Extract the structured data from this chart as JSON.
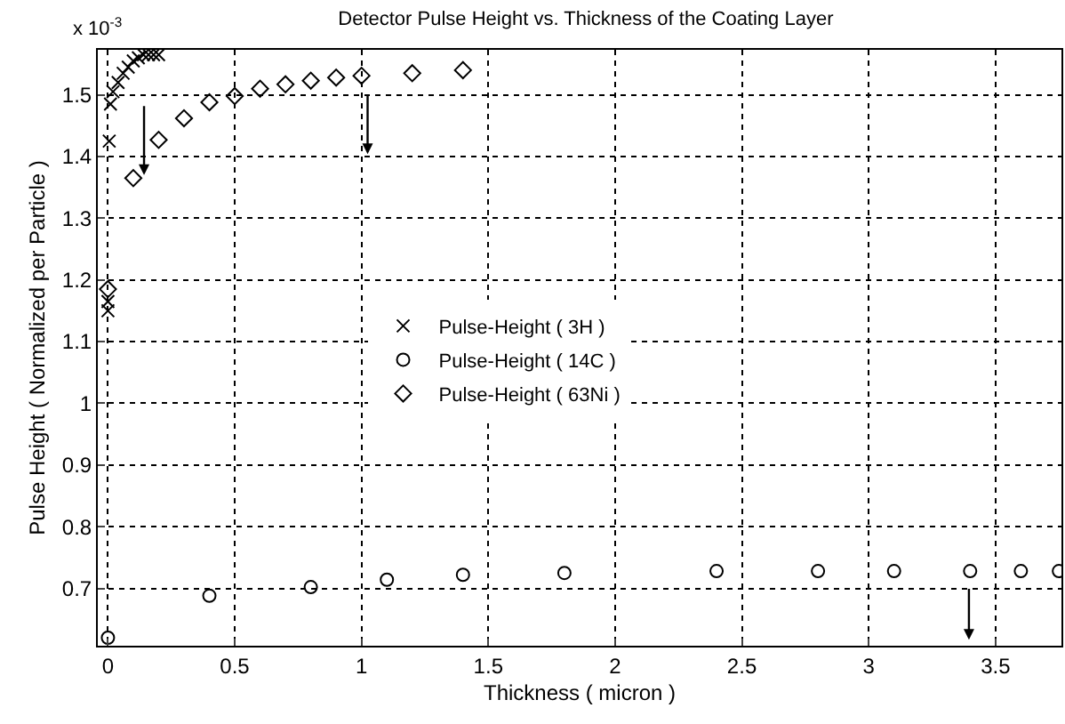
{
  "chart_data": {
    "type": "scatter",
    "title": "Detector Pulse Height vs. Thickness of the Coating Layer",
    "xlabel": "Thickness ( micron )",
    "ylabel": "Pulse Height ( Normalized per Particle )",
    "annotations": [
      "x 10$^{-3}$"
    ],
    "series": [
      {
        "name": "Pulse-Height ( 3H )",
        "color": "#000000",
        "marker": "cross",
        "x": [
          0,
          0,
          0.005,
          0.01,
          0.02,
          0.04,
          0.06,
          0.08,
          0.1,
          0.12,
          0.14,
          0.16,
          0.18,
          0.2
        ],
        "values": [
          1.15,
          1.165,
          1.425,
          1.485,
          1.505,
          1.52,
          1.535,
          1.545,
          1.555,
          1.56,
          1.565,
          1.565,
          1.565,
          1.565
        ]
      },
      {
        "name": "Pulse-Height ( 14C )",
        "color": "#000000",
        "marker": "circle",
        "x": [
          0,
          0.4,
          0.8,
          1.1,
          1.4,
          1.8,
          2.4,
          2.8,
          3.1,
          3.4,
          3.6,
          3.75
        ],
        "values": [
          0.62,
          0.688,
          0.702,
          0.714,
          0.722,
          0.725,
          0.728,
          0.728,
          0.728,
          0.728,
          0.728,
          0.728
        ]
      },
      {
        "name": "Pulse-Height ( 63Ni )",
        "color": "#000000",
        "marker": "diamond",
        "x": [
          0,
          0.1,
          0.2,
          0.3,
          0.4,
          0.5,
          0.6,
          0.7,
          0.8,
          0.9,
          1.0,
          1.2,
          1.4
        ],
        "values": [
          1.185,
          1.365,
          1.427,
          1.462,
          1.488,
          1.498,
          1.51,
          1.517,
          1.523,
          1.528,
          1.531,
          1.535,
          1.54
        ]
      }
    ],
    "xlim": [
      -0.04,
      3.76
    ],
    "xticks": [
      0,
      0.5,
      1,
      1.5,
      2,
      2.5,
      3,
      3.5
    ],
    "ylim": [
      0.607,
      1.573
    ],
    "yticks": [
      0.7,
      0.8,
      0.9,
      1,
      1.1,
      1.2,
      1.3,
      1.4,
      1.5
    ],
    "grid": true,
    "legend": "center"
  }
}
